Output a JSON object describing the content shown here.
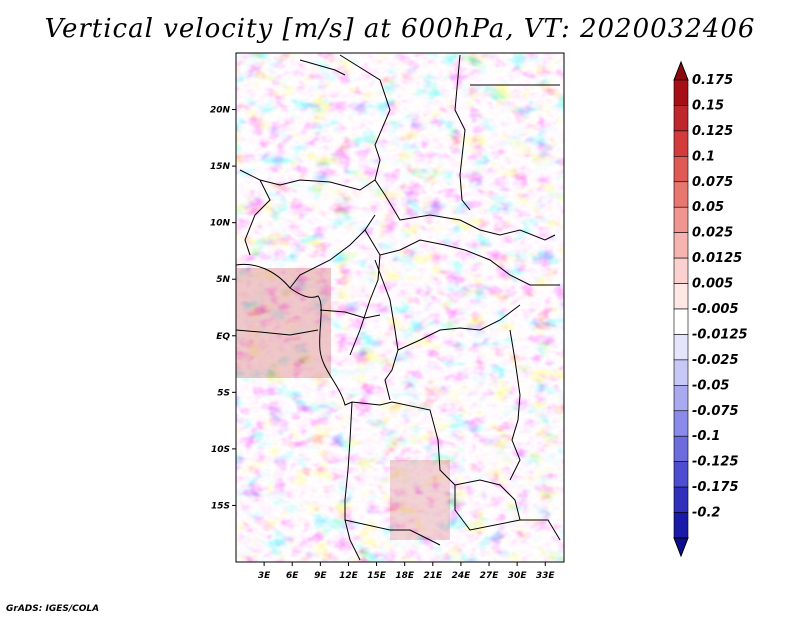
{
  "title": "Vertical velocity [m/s] at 600hPa, VT: 2020032406",
  "footer": "GrADS: IGES/COLA",
  "map": {
    "lon_range": [
      0,
      35
    ],
    "lat_range": [
      -20,
      25
    ],
    "lat_ticks": [
      {
        "value": 20,
        "label": "20N"
      },
      {
        "value": 15,
        "label": "15N"
      },
      {
        "value": 10,
        "label": "10N"
      },
      {
        "value": 5,
        "label": "5N"
      },
      {
        "value": 0,
        "label": "EQ"
      },
      {
        "value": -5,
        "label": "5S"
      },
      {
        "value": -10,
        "label": "10S"
      },
      {
        "value": -15,
        "label": "15S"
      }
    ],
    "lon_ticks": [
      {
        "value": 3,
        "label": "3E"
      },
      {
        "value": 6,
        "label": "6E"
      },
      {
        "value": 9,
        "label": "9E"
      },
      {
        "value": 12,
        "label": "12E"
      },
      {
        "value": 15,
        "label": "15E"
      },
      {
        "value": 18,
        "label": "18E"
      },
      {
        "value": 21,
        "label": "21E"
      },
      {
        "value": 24,
        "label": "24E"
      },
      {
        "value": 27,
        "label": "27E"
      },
      {
        "value": 30,
        "label": "30E"
      },
      {
        "value": 33,
        "label": "33E"
      }
    ]
  },
  "colorbar": {
    "levels": [
      {
        "label": "0.175",
        "color": "#a50f15"
      },
      {
        "label": "0.15",
        "color": "#c0272d"
      },
      {
        "label": "0.125",
        "color": "#d33c3c"
      },
      {
        "label": "0.1",
        "color": "#e05a55"
      },
      {
        "label": "0.075",
        "color": "#e8776f"
      },
      {
        "label": "0.05",
        "color": "#f09590"
      },
      {
        "label": "0.025",
        "color": "#f6b4b0"
      },
      {
        "label": "0.0125",
        "color": "#fad1cf"
      },
      {
        "label": "0.005",
        "color": "#fde8e6"
      },
      {
        "label": "-0.005",
        "color": "#ffffff"
      },
      {
        "label": "-0.0125",
        "color": "#e4e4fb"
      },
      {
        "label": "-0.025",
        "color": "#c8c8f6"
      },
      {
        "label": "-0.05",
        "color": "#a9a9f0"
      },
      {
        "label": "-0.075",
        "color": "#8a8ae8"
      },
      {
        "label": "-0.1",
        "color": "#6c6cdc"
      },
      {
        "label": "-0.125",
        "color": "#4d4dcf"
      },
      {
        "label": "-0.175",
        "color": "#3030bd"
      },
      {
        "label": "-0.2",
        "color": "#1a1aa8"
      }
    ],
    "top_color": "#8b0a10",
    "bottom_color": "#0d0d90"
  }
}
